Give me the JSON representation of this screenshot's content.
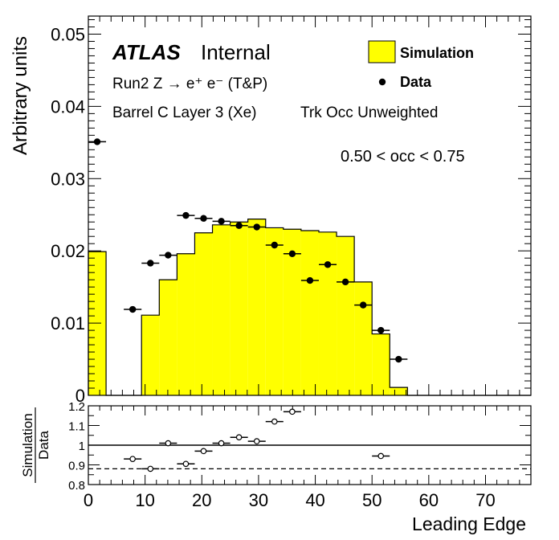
{
  "chart_data": [
    {
      "type": "histogram",
      "xlabel": "",
      "ylabel": "Arbitrary units",
      "xlim": [
        0,
        78
      ],
      "ylim": [
        0,
        0.0525
      ],
      "yticks": [
        0,
        0.01,
        0.02,
        0.03,
        0.04,
        0.05
      ],
      "ytick_labels": [
        "0",
        "0.01",
        "0.02",
        "0.03",
        "0.04",
        "0.05"
      ],
      "annotations": {
        "atlas": "ATLAS",
        "internal": "Internal",
        "line1": "Run2 Z → e⁺ e⁻ (T&P)",
        "line2": "Barrel C Layer 3 (Xe)",
        "line3": "Trk Occ Unweighted",
        "range": "0.50 < occ < 0.75"
      },
      "legend": {
        "placement": "top-right",
        "simulation": "Simulation",
        "data": "Data"
      },
      "series": [
        {
          "name": "Simulation",
          "style": "filled-step",
          "color": "#ffff00",
          "bin_edges": [
            0,
            3.125,
            6.25,
            9.375,
            12.5,
            15.625,
            18.75,
            21.875,
            25,
            28.125,
            31.25,
            34.375,
            37.5,
            40.625,
            43.75,
            46.875,
            50,
            53.125,
            56.25,
            78
          ],
          "values": [
            0.0199,
            0,
            0,
            0.0111,
            0.016,
            0.0196,
            0.0225,
            0.0236,
            0.024,
            0.0244,
            0.0232,
            0.023,
            0.0228,
            0.0226,
            0.022,
            0.0157,
            0.0085,
            0.0011,
            0
          ]
        },
        {
          "name": "Data",
          "style": "markers",
          "color": "#000000",
          "x": [
            1.56,
            7.81,
            10.94,
            14.06,
            17.19,
            20.31,
            23.44,
            26.56,
            29.69,
            32.81,
            35.94,
            39.06,
            42.19,
            45.31,
            48.44,
            51.56,
            54.69
          ],
          "xerr": 1.56,
          "y": [
            0.0351,
            0.0119,
            0.0183,
            0.0194,
            0.0249,
            0.0245,
            0.0241,
            0.0235,
            0.0233,
            0.0208,
            0.0196,
            0.0159,
            0.0181,
            0.0157,
            0.0125,
            0.009,
            0.005
          ]
        }
      ]
    },
    {
      "type": "scatter",
      "xlabel": "Leading Edge",
      "ylabel": "Simulation / Data",
      "ylabel_numerator": "Simulation",
      "ylabel_denominator": "Data",
      "xlim": [
        0,
        78
      ],
      "ylim": [
        0.8,
        1.2
      ],
      "xticks": [
        0,
        10,
        20,
        30,
        40,
        50,
        60,
        70
      ],
      "xtick_labels": [
        "0",
        "10",
        "20",
        "30",
        "40",
        "50",
        "60",
        "70"
      ],
      "yticks": [
        0.8,
        0.9,
        1,
        1.1,
        1.2
      ],
      "ytick_labels": [
        "0.8",
        "0.9",
        "1",
        "1.1",
        "1.2"
      ],
      "reference_lines": [
        1.0,
        0.88
      ],
      "series": [
        {
          "name": "Simulation / Data",
          "style": "open-markers",
          "x": [
            7.81,
            10.94,
            14.06,
            17.19,
            20.31,
            23.44,
            26.56,
            29.69,
            32.81,
            35.94,
            51.56
          ],
          "xerr": 1.56,
          "y": [
            0.93,
            0.88,
            1.01,
            0.905,
            0.97,
            1.01,
            1.04,
            1.02,
            1.12,
            1.17,
            0.945
          ]
        }
      ]
    }
  ]
}
